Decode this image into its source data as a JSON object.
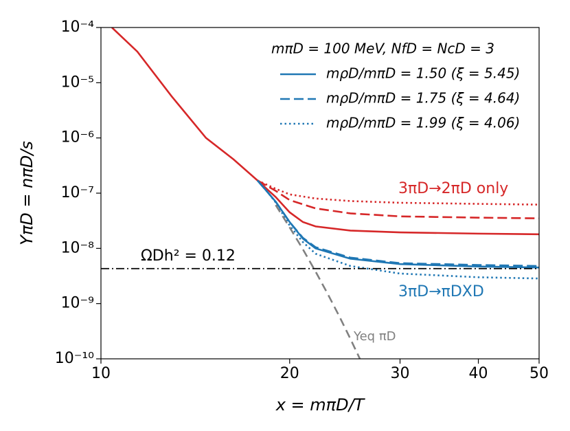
{
  "chart_data": {
    "type": "line",
    "xlabel": "x = mπD/T",
    "ylabel": "YπD = nπD/s",
    "xscale": "log",
    "yscale": "log",
    "xlim": [
      10,
      50
    ],
    "ylim": [
      1e-10,
      0.0001
    ],
    "xticks": [
      10,
      20,
      30,
      40,
      50
    ],
    "yticks": [
      {
        "value": 1e-10,
        "label": "10⁻¹⁰"
      },
      {
        "value": 1e-09,
        "label": "10⁻⁹"
      },
      {
        "value": 1e-08,
        "label": "10⁻⁸"
      },
      {
        "value": 1e-07,
        "label": "10⁻⁷"
      },
      {
        "value": 1e-06,
        "label": "10⁻⁶"
      },
      {
        "value": 1e-05,
        "label": "10⁻⁵"
      },
      {
        "value": 0.0001,
        "label": "10⁻⁴"
      }
    ],
    "legend_title": "mπD = 100 MeV, NfD = NcD = 3",
    "legend": "upper right",
    "series": [
      {
        "color": "#d62728",
        "linestyle": "solid",
        "x": [
          10.41,
          11.43,
          12.96,
          14.71,
          16.27,
          17.77,
          19,
          20,
          21,
          22,
          25,
          30,
          40,
          50
        ],
        "values": [
          0.0001,
          3.66e-05,
          5.7e-06,
          1e-06,
          4.1e-07,
          1.7e-07,
          8.5e-08,
          4.5e-08,
          3e-08,
          2.5e-08,
          2.1e-08,
          1.95e-08,
          1.85e-08,
          1.8e-08
        ]
      },
      {
        "color": "#d62728",
        "linestyle": "dashed",
        "x": [
          17.77,
          19,
          20,
          22,
          25,
          30,
          40,
          50
        ],
        "values": [
          1.7e-07,
          1.1e-07,
          7.5e-08,
          5.3e-08,
          4.3e-08,
          3.8e-08,
          3.6e-08,
          3.5e-08
        ]
      },
      {
        "color": "#d62728",
        "linestyle": "dotted",
        "x": [
          17.77,
          19,
          20,
          22,
          25,
          30,
          40,
          50
        ],
        "values": [
          1.7e-07,
          1.2e-07,
          9.5e-08,
          8e-08,
          7.2e-08,
          6.7e-08,
          6.4e-08,
          6.2e-08
        ]
      },
      {
        "name": "mρD/mπD = 1.50 (ξ = 5.45)",
        "color": "#1f77b4",
        "linestyle": "solid",
        "x": [
          17.77,
          18.5,
          19,
          20,
          21,
          22,
          25,
          30,
          40,
          50
        ],
        "values": [
          1.7e-07,
          1e-07,
          7e-08,
          3e-08,
          1.5e-08,
          1e-08,
          6.5e-09,
          5.2e-09,
          4.7e-09,
          4.5e-09
        ]
      },
      {
        "name": "mρD/mπD = 1.75 (ξ = 4.64)",
        "color": "#1f77b4",
        "linestyle": "dashed",
        "x": [
          17.77,
          18.5,
          19,
          20,
          21,
          22,
          25,
          30,
          40,
          50
        ],
        "values": [
          1.7e-07,
          1e-07,
          7e-08,
          3e-08,
          1.55e-08,
          1.05e-08,
          6.8e-09,
          5.4e-09,
          5e-09,
          4.8e-09
        ]
      },
      {
        "name": "mρD/mπD = 1.99 (ξ = 4.06)",
        "color": "#1f77b4",
        "linestyle": "dotted",
        "x": [
          17.77,
          18.5,
          19,
          20,
          21,
          22,
          25,
          30,
          40,
          50
        ],
        "values": [
          1.7e-07,
          1e-07,
          6.8e-08,
          2.6e-08,
          1.3e-08,
          8e-09,
          4.8e-09,
          3.5e-09,
          3e-09,
          2.85e-09
        ]
      },
      {
        "color": "#808080",
        "linestyle": "longdash",
        "x": [
          19,
          20,
          21,
          22,
          23,
          24,
          25,
          26
        ],
        "values": [
          6.1e-08,
          2.4e-08,
          9.6e-09,
          3.8e-09,
          1.5e-09,
          5.9e-10,
          2.3e-10,
          9e-11
        ]
      },
      {
        "color": "#000000",
        "linestyle": "dashdot",
        "x": [
          10,
          50
        ],
        "values": [
          4.3e-09,
          4.3e-09
        ]
      }
    ],
    "annotations": [
      {
        "text": "3πD→2πD only",
        "color": "#d62728"
      },
      {
        "text": "3πD→πDXD",
        "color": "#1f77b4"
      },
      {
        "text": "ΩDh² = 0.12",
        "color": "#000000"
      },
      {
        "text": "Yeq πD",
        "color": "#808080"
      }
    ]
  }
}
